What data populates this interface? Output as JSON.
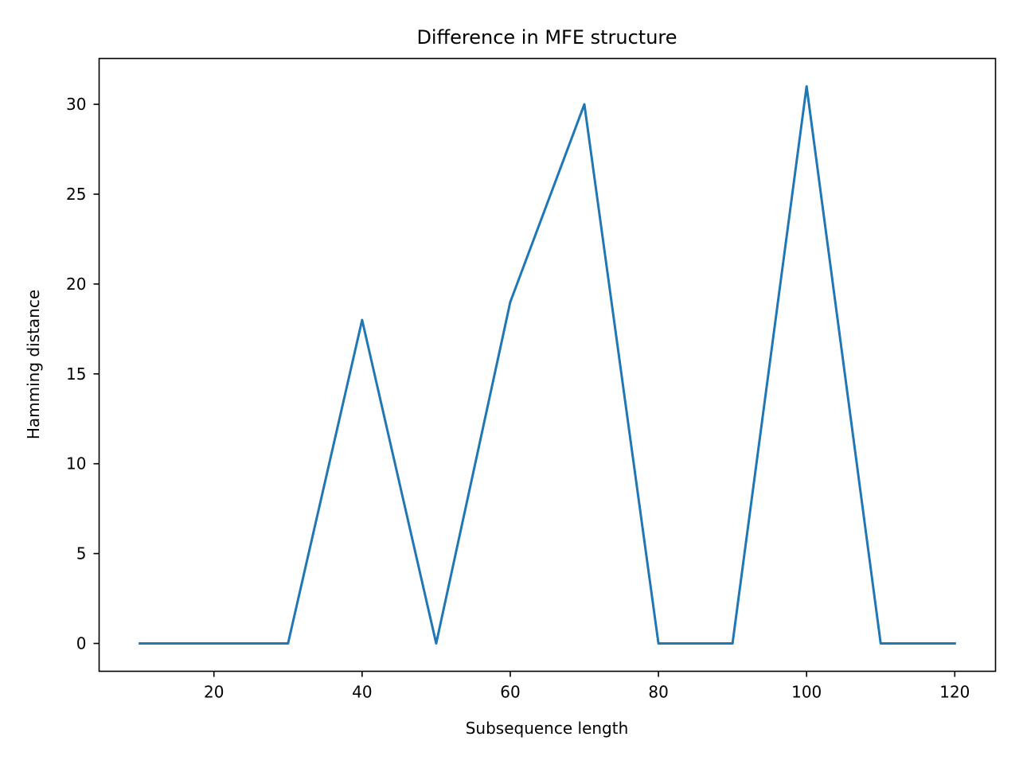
{
  "chart_data": {
    "type": "line",
    "title": "Difference in MFE structure",
    "xlabel": "Subsequence length",
    "ylabel": "Hamming distance",
    "xlim": [
      4.5,
      125.5
    ],
    "ylim": [
      -1.55,
      32.55
    ],
    "xticks": [
      20,
      40,
      60,
      80,
      100,
      120
    ],
    "yticks": [
      0,
      5,
      10,
      15,
      20,
      25,
      30
    ],
    "grid": false,
    "series": [
      {
        "color": "#1f77b4",
        "x": [
          10,
          20,
          30,
          40,
          50,
          60,
          70,
          80,
          90,
          100,
          110,
          120
        ],
        "y": [
          0,
          0,
          0,
          18,
          0,
          19,
          30,
          0,
          0,
          31,
          0,
          0
        ]
      }
    ]
  }
}
